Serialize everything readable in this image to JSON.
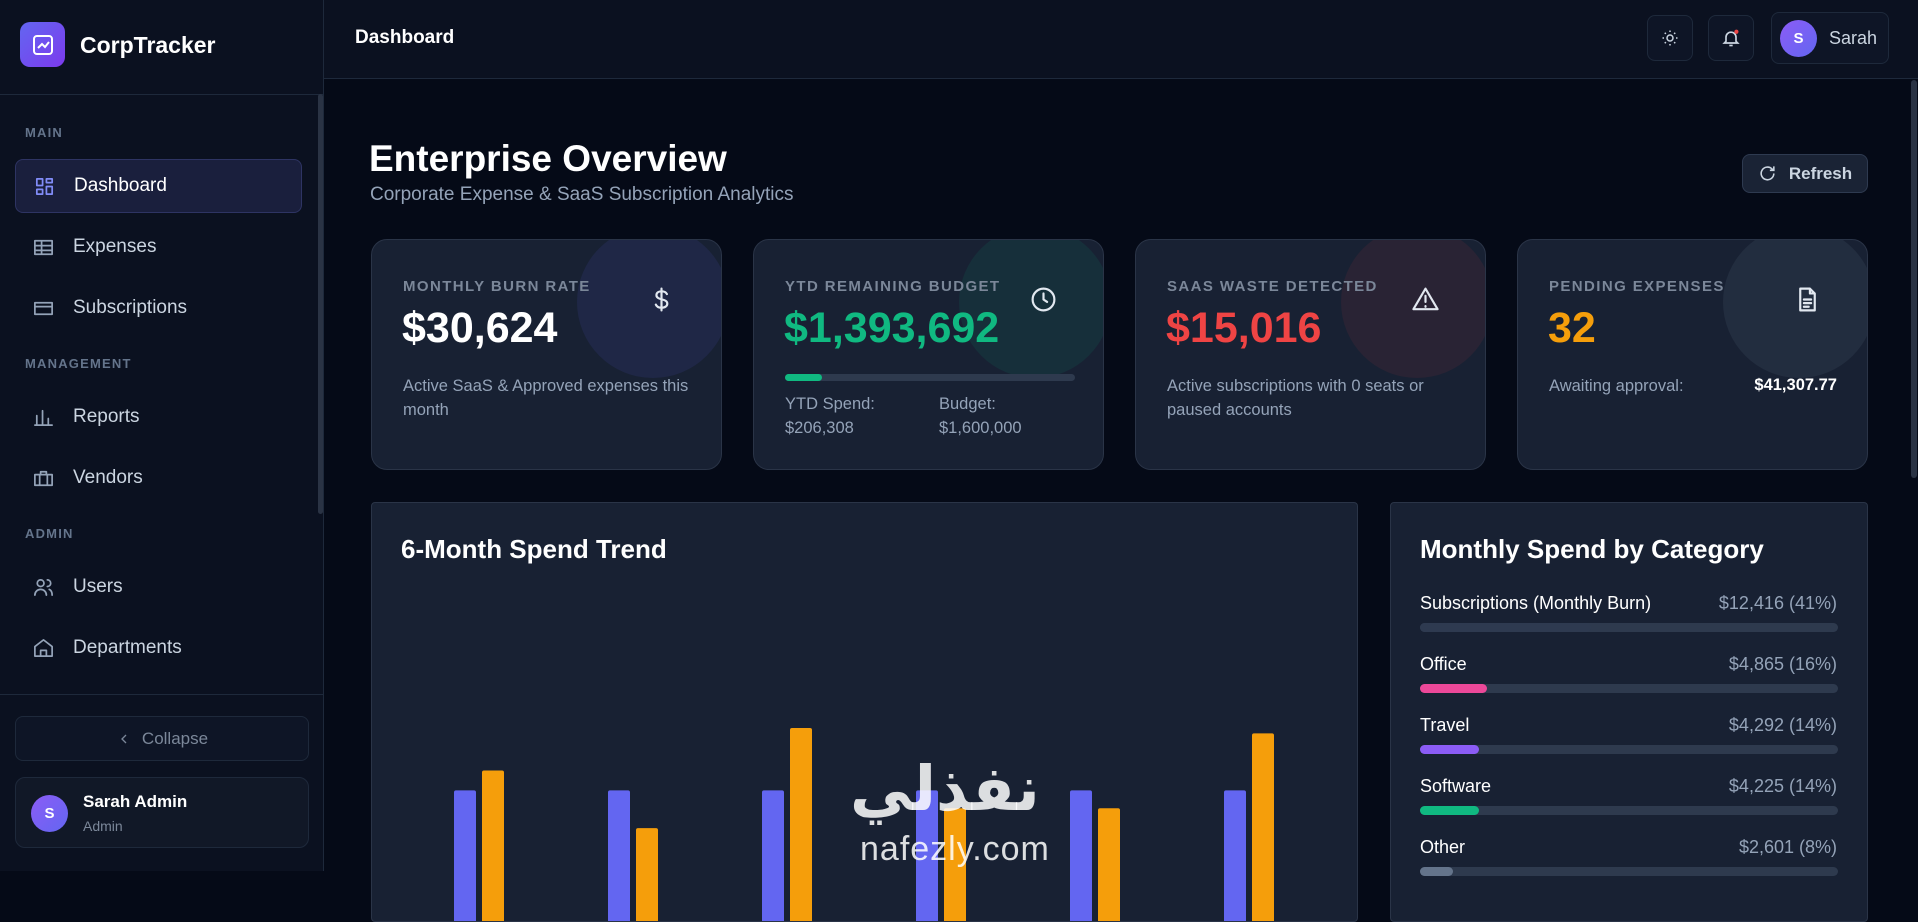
{
  "sidebar": {
    "brand": "CorpTracker",
    "sections": [
      {
        "label": "MAIN",
        "items": [
          "Dashboard",
          "Expenses",
          "Subscriptions"
        ]
      },
      {
        "label": "MANAGEMENT",
        "items": [
          "Reports",
          "Vendors"
        ]
      },
      {
        "label": "ADMIN",
        "items": [
          "Users",
          "Departments"
        ]
      }
    ],
    "collapse": "Collapse",
    "user": {
      "initial": "S",
      "name": "Sarah Admin",
      "role": "Admin"
    }
  },
  "header": {
    "title": "Dashboard",
    "user": {
      "initial": "S",
      "name": "Sarah"
    }
  },
  "page": {
    "title": "Enterprise Overview",
    "subtitle": "Corporate Expense & SaaS Subscription Analytics",
    "refresh": "Refresh"
  },
  "cards": [
    {
      "label": "MONTHLY BURN RATE",
      "value": "$30,624",
      "value_color": "#ffffff",
      "description": "Active SaaS & Approved expenses this month"
    },
    {
      "label": "YTD REMAINING BUDGET",
      "value": "$1,393,692",
      "value_color": "#10b981",
      "progress_percent": 12.9,
      "progress_color": "#10b981",
      "spend_label": "YTD Spend:",
      "spend": "$206,308",
      "budget_label": "Budget:",
      "budget": "$1,600,000"
    },
    {
      "label": "SAAS WASTE DETECTED",
      "value": "$15,016",
      "value_color": "#ef4444",
      "description": "Active subscriptions with 0 seats or paused accounts"
    },
    {
      "label": "PENDING EXPENSES",
      "value": "32",
      "value_color": "#f59e0b",
      "detail_label": "Awaiting approval:",
      "detail_value": "$41,307.77"
    }
  ],
  "spend_trend": {
    "type": "bar",
    "title": "6-Month Spend Trend",
    "ylim": [
      0,
      50000
    ],
    "series": [
      {
        "color": "#6366f1",
        "values": [
          20500,
          20500,
          20500,
          20500,
          20500,
          20500
        ]
      },
      {
        "color": "#f59e0b",
        "values": [
          23400,
          15000,
          29600,
          17900,
          17900,
          28800
        ]
      }
    ]
  },
  "category": {
    "title": "Monthly Spend by Category",
    "items": [
      {
        "label": "Subscriptions (Monthly Burn)",
        "value_label": "$12,416 (41%)",
        "percent": 41,
        "color": "#2e3a50"
      },
      {
        "label": "Office",
        "value_label": "$4,865 (16%)",
        "percent": 16,
        "color": "#ec4899"
      },
      {
        "label": "Travel",
        "value_label": "$4,292 (14%)",
        "percent": 14,
        "color": "#8b5cf6"
      },
      {
        "label": "Software",
        "value_label": "$4,225 (14%)",
        "percent": 14,
        "color": "#10b981"
      },
      {
        "label": "Other",
        "value_label": "$2,601 (8%)",
        "percent": 8,
        "color": "#64748b"
      }
    ]
  },
  "watermark": {
    "arabic": "نفذلي",
    "latin": "nafezly.com"
  }
}
